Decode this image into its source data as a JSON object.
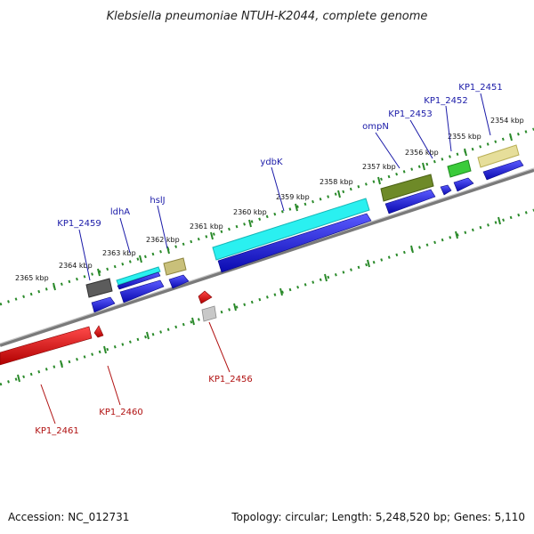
{
  "title": "Klebsiella pneumoniae NTUH-K2044, complete genome",
  "accession": "Accession: NC_012731",
  "topology": "Topology: circular; Length: 5,248,520 bp; Genes: 5,110",
  "colors": {
    "forward_label": "#1a1aa8",
    "reverse_label": "#b01010",
    "tick": "#2a8a2a",
    "backbone": "#888888",
    "forward_cds": "#1414e0",
    "reverse_cds": "#e01414"
  },
  "scale_ticks": [
    {
      "label": "2354 kbp"
    },
    {
      "label": "2355 kbp"
    },
    {
      "label": "2356 kbp"
    },
    {
      "label": "2357 kbp"
    },
    {
      "label": "2358 kbp"
    },
    {
      "label": "2359 kbp"
    },
    {
      "label": "2360 kbp"
    },
    {
      "label": "2361 kbp"
    },
    {
      "label": "2362 kbp"
    },
    {
      "label": "2363 kbp"
    },
    {
      "label": "2364 kbp"
    },
    {
      "label": "2365 kbp"
    }
  ],
  "forward_genes": [
    {
      "name": "KP1_2451"
    },
    {
      "name": "KP1_2452"
    },
    {
      "name": "KP1_2453"
    },
    {
      "name": "ompN"
    },
    {
      "name": "ydbK"
    },
    {
      "name": "hslJ"
    },
    {
      "name": "ldhA"
    },
    {
      "name": "KP1_2459"
    }
  ],
  "reverse_genes": [
    {
      "name": "KP1_2456"
    },
    {
      "name": "KP1_2460"
    },
    {
      "name": "KP1_2461"
    }
  ]
}
